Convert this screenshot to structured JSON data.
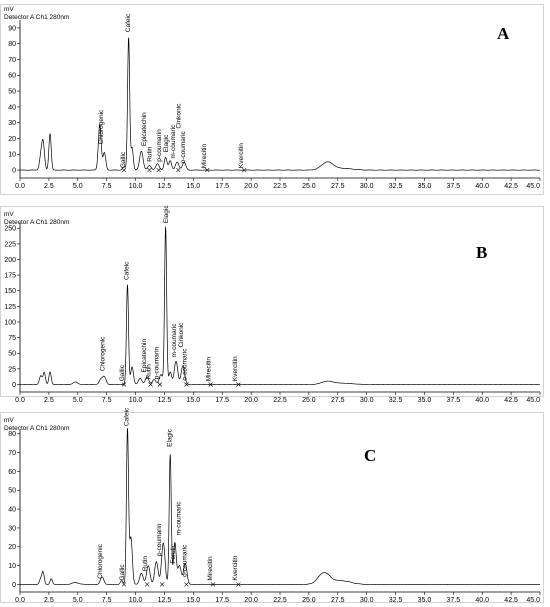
{
  "chart_data": [
    {
      "type": "line",
      "panel": "A",
      "units": "mV",
      "detector": "Detector A Ch1 280nm",
      "xlim": [
        0,
        45
      ],
      "ylim": [
        -5,
        95
      ],
      "xticks": [
        "0.0",
        "2.5",
        "5.0",
        "7.5",
        "10.0",
        "12.5",
        "15.0",
        "17.5",
        "20.0",
        "22.5",
        "25.0",
        "27.5",
        "30.0",
        "32.5",
        "35.0",
        "37.5",
        "40.0",
        "42.5",
        "45.0"
      ],
      "yticks": [
        "0",
        "10",
        "20",
        "30",
        "40",
        "50",
        "60",
        "70",
        "80",
        "90"
      ],
      "peaks": [
        {
          "t": 1.8,
          "h": 8,
          "w": 0.12
        },
        {
          "t": 2.0,
          "h": 17,
          "w": 0.12
        },
        {
          "t": 2.6,
          "h": 23,
          "w": 0.1
        },
        {
          "t": 6.9,
          "h": 29,
          "w": 0.12
        },
        {
          "t": 7.3,
          "h": 11,
          "w": 0.12
        },
        {
          "t": 9.0,
          "h": 2,
          "w": 0.12
        },
        {
          "t": 9.4,
          "h": 84,
          "w": 0.09
        },
        {
          "t": 9.7,
          "h": 14,
          "w": 0.1
        },
        {
          "t": 10.5,
          "h": 12,
          "w": 0.15
        },
        {
          "t": 11.2,
          "h": 3,
          "w": 0.15
        },
        {
          "t": 11.9,
          "h": 4,
          "w": 0.15
        },
        {
          "t": 12.6,
          "h": 8,
          "w": 0.12
        },
        {
          "t": 13.0,
          "h": 6,
          "w": 0.12
        },
        {
          "t": 13.6,
          "h": 5,
          "w": 0.15
        },
        {
          "t": 14.2,
          "h": 5,
          "w": 0.15
        },
        {
          "t": 26.6,
          "h": 5,
          "w": 0.5
        },
        {
          "t": 28.0,
          "h": 1,
          "w": 0.8
        }
      ],
      "labels": [
        {
          "text": "Chlorogenic",
          "t": 7.2,
          "y": 15
        },
        {
          "text": "Cafeic",
          "t": 9.5,
          "y": 86
        },
        {
          "text": "Gallic",
          "t": 9.1,
          "y": 0
        },
        {
          "text": "Epicatechin",
          "t": 10.9,
          "y": 14
        },
        {
          "text": "Rutin",
          "t": 11.4,
          "y": 4
        },
        {
          "text": "p-coumarin",
          "t": 12.2,
          "y": 4
        },
        {
          "text": "Elagic",
          "t": 12.8,
          "y": 10
        },
        {
          "text": "m-coumaric",
          "t": 13.4,
          "y": 6
        },
        {
          "text": "Cinkonic",
          "t": 13.9,
          "y": 25
        },
        {
          "text": "o-coumaric",
          "t": 14.3,
          "y": 3
        },
        {
          "text": "Mirecitin",
          "t": 16.1,
          "y": 0
        },
        {
          "text": "Kvercitin",
          "t": 19.3,
          "y": 0
        }
      ],
      "markers": [
        9.0,
        11.2,
        12.0,
        13.7,
        16.2,
        19.4
      ]
    },
    {
      "type": "line",
      "panel": "B",
      "units": "mV",
      "detector": "Detector A Ch1 280nm",
      "xlim": [
        0,
        45
      ],
      "ylim": [
        -12,
        260
      ],
      "xticks": [
        "0.0",
        "2.5",
        "5.0",
        "7.5",
        "10.0",
        "12.5",
        "15.0",
        "17.5",
        "20.0",
        "22.5",
        "25.0",
        "27.5",
        "30.0",
        "32.5",
        "35.0",
        "37.5",
        "40.0",
        "42.5",
        "45.0"
      ],
      "yticks": [
        "0",
        "25",
        "50",
        "75",
        "100",
        "125",
        "150",
        "175",
        "200",
        "225",
        "250"
      ],
      "peaks": [
        {
          "t": 1.8,
          "h": 14,
          "w": 0.12
        },
        {
          "t": 2.1,
          "h": 19,
          "w": 0.1
        },
        {
          "t": 2.6,
          "h": 20,
          "w": 0.1
        },
        {
          "t": 4.8,
          "h": 4,
          "w": 0.2
        },
        {
          "t": 7.0,
          "h": 8,
          "w": 0.15
        },
        {
          "t": 7.3,
          "h": 12,
          "w": 0.15
        },
        {
          "t": 9.3,
          "h": 160,
          "w": 0.09
        },
        {
          "t": 9.7,
          "h": 28,
          "w": 0.12
        },
        {
          "t": 10.4,
          "h": 10,
          "w": 0.15
        },
        {
          "t": 11.0,
          "h": 12,
          "w": 0.15
        },
        {
          "t": 11.6,
          "h": 8,
          "w": 0.15
        },
        {
          "t": 12.2,
          "h": 16,
          "w": 0.15
        },
        {
          "t": 12.6,
          "h": 252,
          "w": 0.09
        },
        {
          "t": 13.0,
          "h": 20,
          "w": 0.12
        },
        {
          "t": 13.5,
          "h": 37,
          "w": 0.15
        },
        {
          "t": 14.1,
          "h": 30,
          "w": 0.15
        },
        {
          "t": 26.6,
          "h": 5,
          "w": 0.5
        },
        {
          "t": 28.0,
          "h": 2,
          "w": 0.8
        }
      ],
      "labels": [
        {
          "text": "Chlorogenic",
          "t": 7.3,
          "y": 18
        },
        {
          "text": "Cafeic",
          "t": 9.4,
          "y": 164
        },
        {
          "text": "Gallic",
          "t": 9.0,
          "y": 2
        },
        {
          "text": "Epicatechin",
          "t": 10.9,
          "y": 16
        },
        {
          "text": "Rutin",
          "t": 11.3,
          "y": 5
        },
        {
          "text": "p-coumarin",
          "t": 12.0,
          "y": 5
        },
        {
          "text": "Elagic",
          "t": 12.8,
          "y": 255
        },
        {
          "text": "m-coumaric",
          "t": 13.5,
          "y": 40
        },
        {
          "text": "Cinkonic",
          "t": 14.1,
          "y": 56
        },
        {
          "text": "o-coumaric",
          "t": 14.4,
          "y": 3
        },
        {
          "text": "Mirecitin",
          "t": 16.5,
          "y": 2
        },
        {
          "text": "Kvercitin",
          "t": 18.8,
          "y": 2
        }
      ],
      "markers": [
        9.0,
        11.3,
        12.1,
        14.4,
        16.5,
        18.9
      ]
    },
    {
      "type": "line",
      "panel": "C",
      "units": "mV",
      "detector": "Detector A Ch1 280nm",
      "xlim": [
        0,
        45
      ],
      "ylim": [
        -4,
        82
      ],
      "xticks": [
        "0.0",
        "2.5",
        "5.0",
        "7.5",
        "10.0",
        "12.5",
        "15.0",
        "17.5",
        "20.0",
        "22.5",
        "25.0",
        "27.5",
        "30.0",
        "32.5",
        "35.0",
        "37.5",
        "40.0",
        "42.5",
        "45.0"
      ],
      "yticks": [
        "0",
        "10",
        "20",
        "30",
        "40",
        "50",
        "60",
        "70",
        "80"
      ],
      "peaks": [
        {
          "t": 1.8,
          "h": 3,
          "w": 0.12
        },
        {
          "t": 2.0,
          "h": 6,
          "w": 0.1
        },
        {
          "t": 2.7,
          "h": 3,
          "w": 0.1
        },
        {
          "t": 4.8,
          "h": 1,
          "w": 0.3
        },
        {
          "t": 7.1,
          "h": 4,
          "w": 0.15
        },
        {
          "t": 8.8,
          "h": 2,
          "w": 0.12
        },
        {
          "t": 9.3,
          "h": 82,
          "w": 0.09
        },
        {
          "t": 9.6,
          "h": 25,
          "w": 0.12
        },
        {
          "t": 10.5,
          "h": 6,
          "w": 0.15
        },
        {
          "t": 11.1,
          "h": 10,
          "w": 0.15
        },
        {
          "t": 11.8,
          "h": 12,
          "w": 0.15
        },
        {
          "t": 12.4,
          "h": 22,
          "w": 0.15
        },
        {
          "t": 13.0,
          "h": 69,
          "w": 0.09
        },
        {
          "t": 13.4,
          "h": 22,
          "w": 0.12
        },
        {
          "t": 13.8,
          "h": 10,
          "w": 0.15
        },
        {
          "t": 14.3,
          "h": 11,
          "w": 0.15
        },
        {
          "t": 26.3,
          "h": 6,
          "w": 0.5
        },
        {
          "t": 27.8,
          "h": 2,
          "w": 0.8
        }
      ],
      "labels": [
        {
          "text": "Chlorogenic",
          "t": 7.1,
          "y": 2
        },
        {
          "text": "Gallic",
          "t": 9.0,
          "y": 1
        },
        {
          "text": "Cafeic",
          "t": 9.4,
          "y": 83
        },
        {
          "text": "Rutin",
          "t": 11.0,
          "y": 6
        },
        {
          "text": "p-coumarin",
          "t": 12.2,
          "y": 14
        },
        {
          "text": "Elagic",
          "t": 13.1,
          "y": 72
        },
        {
          "text": "Ferulic",
          "t": 13.4,
          "y": 10
        },
        {
          "text": "m-coumaric",
          "t": 13.9,
          "y": 25
        },
        {
          "text": "o-coumaric",
          "t": 14.4,
          "y": 3
        },
        {
          "text": "Mirecitin",
          "t": 16.6,
          "y": 1
        },
        {
          "text": "Kvercitin",
          "t": 18.8,
          "y": 1
        }
      ],
      "markers": [
        9.0,
        11.0,
        12.3,
        14.4,
        16.7,
        18.9
      ]
    }
  ]
}
